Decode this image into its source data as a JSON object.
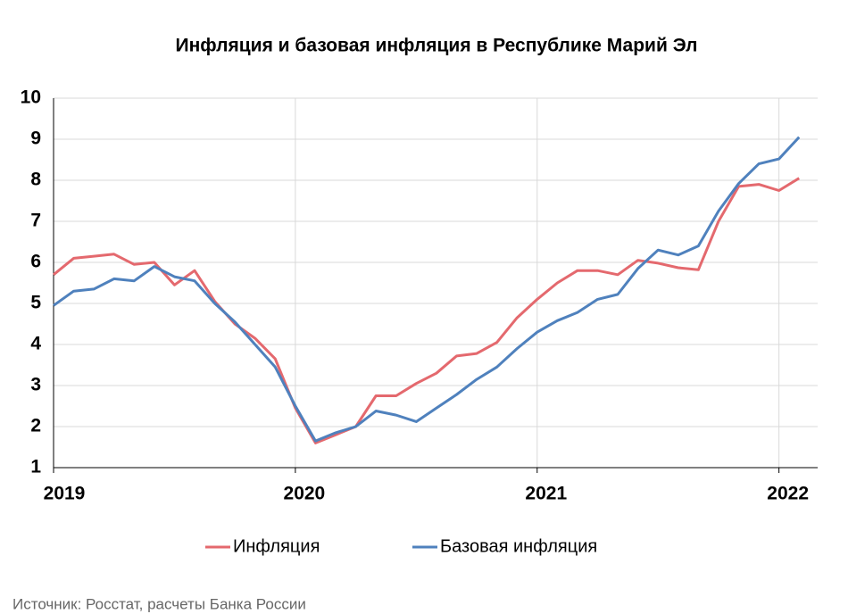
{
  "chart_data": {
    "type": "line",
    "title": "Инфляция и базовая инфляция в Республике Марий Эл",
    "x": [
      2019,
      2019.0833,
      2019.1667,
      2019.25,
      2019.3333,
      2019.4167,
      2019.5,
      2019.5833,
      2019.6667,
      2019.75,
      2019.8333,
      2019.9167,
      2020,
      2020.0833,
      2020.1667,
      2020.25,
      2020.3333,
      2020.4167,
      2020.5,
      2020.5833,
      2020.6667,
      2020.75,
      2020.8333,
      2020.9167,
      2021,
      2021.0833,
      2021.1667,
      2021.25,
      2021.3333,
      2021.4167,
      2021.5,
      2021.5833,
      2021.6667,
      2021.75,
      2021.8333,
      2021.9167,
      2022,
      2022.0833
    ],
    "series": [
      {
        "name": "Инфляция",
        "color": "#e4696e",
        "values": [
          5.7,
          6.1,
          6.15,
          6.2,
          5.95,
          6.0,
          5.45,
          5.8,
          5.05,
          4.5,
          4.15,
          3.65,
          2.45,
          1.6,
          1.8,
          2.0,
          2.75,
          2.75,
          3.05,
          3.3,
          3.72,
          3.78,
          4.05,
          4.65,
          5.1,
          5.5,
          5.8,
          5.8,
          5.7,
          6.05,
          5.98,
          5.87,
          5.82,
          7.0,
          7.85,
          7.9,
          7.75,
          8.05
        ]
      },
      {
        "name": "Базовая инфляция",
        "color": "#4f81bd",
        "values": [
          4.95,
          5.3,
          5.35,
          5.6,
          5.55,
          5.9,
          5.65,
          5.55,
          5.0,
          4.55,
          4.0,
          3.45,
          2.5,
          1.65,
          1.85,
          2.0,
          2.38,
          2.28,
          2.12,
          2.45,
          2.78,
          3.15,
          3.45,
          3.9,
          4.3,
          4.58,
          4.78,
          5.1,
          5.22,
          5.85,
          6.3,
          6.18,
          6.4,
          7.25,
          7.92,
          8.4,
          8.52,
          9.05
        ]
      }
    ],
    "xlim": [
      2019,
      2022.16
    ],
    "xticks": [
      2019,
      2020,
      2021,
      2022
    ],
    "ylim": [
      1,
      10
    ],
    "yticks": [
      1,
      2,
      3,
      4,
      5,
      6,
      7,
      8,
      9,
      10
    ],
    "grid": true,
    "legend": "bottom",
    "source": "Источник: Росстат, расчеты Банка России"
  }
}
